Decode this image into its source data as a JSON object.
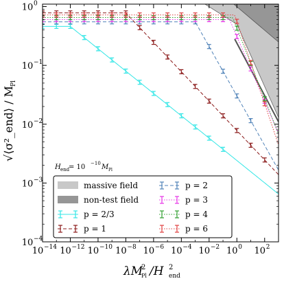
{
  "chart_data": {
    "type": "line",
    "xscale": "log",
    "yscale": "log",
    "xlim": [
      1e-14,
      1000.0
    ],
    "ylim": [
      0.0001,
      1.1
    ],
    "xlabel": {
      "main": "λM",
      "sub": "Pl",
      "mid": "/H",
      "sub2": "end",
      "sup": "2",
      "sup2": "2"
    },
    "ylabel": {
      "main": "√⟨σ²_end⟩ / M",
      "sub": "Pl"
    },
    "x_ticks": [
      {
        "value": 1e-14,
        "label": "10",
        "exp": "−14"
      },
      {
        "value": 1e-12,
        "label": "10",
        "exp": "−12"
      },
      {
        "value": 1e-10,
        "label": "10",
        "exp": "−10"
      },
      {
        "value": 1e-08,
        "label": "10",
        "exp": "−8"
      },
      {
        "value": 1e-06,
        "label": "10",
        "exp": "−6"
      },
      {
        "value": 0.0001,
        "label": "10",
        "exp": "−4"
      },
      {
        "value": 0.01,
        "label": "10",
        "exp": "−2"
      },
      {
        "value": 1,
        "label": "10",
        "exp": "0"
      },
      {
        "value": 100.0,
        "label": "10",
        "exp": "2"
      }
    ],
    "y_ticks": [
      {
        "value": 1,
        "label": "10",
        "exp": "0"
      },
      {
        "value": 0.1,
        "label": "10",
        "exp": "−1"
      },
      {
        "value": 0.01,
        "label": "10",
        "exp": "−2"
      },
      {
        "value": 0.001,
        "label": "10",
        "exp": "−3"
      },
      {
        "value": 0.0001,
        "label": "10",
        "exp": "−4"
      }
    ],
    "annotation": {
      "main": "H",
      "sub": "end",
      "mid": " = 10",
      "sup": "−10",
      "tail": "M",
      "sub2": "Pl"
    },
    "shaded_regions": [
      {
        "name": "massive field",
        "color": "#c8c8c8"
      },
      {
        "name": "non-test field",
        "color": "#969696"
      }
    ],
    "series": [
      {
        "p": "2/3",
        "color": "#33e6e6",
        "style": "solid",
        "plateau": 0.46,
        "knee_x": 1e-12,
        "slope": -0.19,
        "points_x": [
          1e-14,
          1e-13,
          1e-12,
          1e-11,
          1e-10,
          1e-09,
          1e-08,
          1e-07,
          1e-06,
          1e-05,
          0.0001,
          0.001,
          0.01,
          0.1
        ]
      },
      {
        "p": "1",
        "color": "#8b1a1a",
        "style": "dashed",
        "plateau": 0.78,
        "knee_x": 1e-08,
        "slope": -0.25,
        "points_x": [
          1e-14,
          1e-13,
          1e-12,
          1e-11,
          1e-10,
          1e-09,
          1e-08,
          1e-07,
          1e-06,
          1e-05,
          0.0001,
          0.001,
          0.01,
          0.1,
          1,
          10,
          100
        ]
      },
      {
        "p": "2",
        "color": "#4f82b8",
        "style": "dashed",
        "plateau": 0.55,
        "knee_x": 0.001,
        "slope": -0.42,
        "points_x": [
          1e-14,
          1e-13,
          1e-12,
          1e-11,
          1e-10,
          1e-09,
          1e-08,
          1e-07,
          1e-06,
          1e-05,
          0.0001,
          0.001,
          0.01,
          0.1,
          1,
          10
        ]
      },
      {
        "p": "3",
        "color": "#e633e6",
        "style": "dotted",
        "plateau": 0.6,
        "knee_x": 0.3,
        "slope": -0.55,
        "points_x": [
          1e-14,
          1e-13,
          1e-12,
          1e-11,
          1e-10,
          1e-09,
          1e-08,
          1e-07,
          1e-06,
          1e-05,
          0.0001,
          0.001,
          0.01,
          0.1,
          1,
          10,
          100
        ]
      },
      {
        "p": "4",
        "color": "#2e9e2e",
        "style": "dotted",
        "plateau": 0.65,
        "knee_x": 0.5,
        "slope": -0.6,
        "points_x": [
          1e-14,
          1e-13,
          1e-12,
          1e-11,
          1e-10,
          1e-09,
          1e-08,
          1e-07,
          1e-06,
          1e-05,
          0.0001,
          0.001,
          0.01,
          0.1,
          1,
          10,
          100
        ]
      },
      {
        "p": "6",
        "color": "#e04040",
        "style": "dotted",
        "plateau": 0.72,
        "knee_x": 0.7,
        "slope": -0.7,
        "points_x": [
          1e-14,
          1e-13,
          1e-12,
          1e-11,
          1e-10,
          1e-09,
          1e-08,
          1e-07,
          1e-06,
          1e-05,
          0.0001,
          0.001,
          0.01,
          0.1,
          1,
          10,
          100
        ]
      }
    ],
    "legend": {
      "placement": "bottom-left",
      "entries": [
        {
          "label": "massive field",
          "kind": "patch",
          "color": "#c8c8c8"
        },
        {
          "label": "non-test field",
          "kind": "patch",
          "color": "#969696"
        },
        {
          "label": "p = 2/3",
          "kind": "errorbar",
          "color": "#33e6e6",
          "style": "solid"
        },
        {
          "label": "p = 1",
          "kind": "errorbar",
          "color": "#8b1a1a",
          "style": "dashed"
        },
        {
          "label": "p = 2",
          "kind": "errorbar",
          "color": "#4f82b8",
          "style": "dashed"
        },
        {
          "label": "p = 3",
          "kind": "errorbar",
          "color": "#e633e6",
          "style": "dotted"
        },
        {
          "label": "p = 4",
          "kind": "errorbar",
          "color": "#2e9e2e",
          "style": "dotted"
        },
        {
          "label": "p = 6",
          "kind": "errorbar",
          "color": "#e04040",
          "style": "dotted"
        }
      ]
    }
  }
}
